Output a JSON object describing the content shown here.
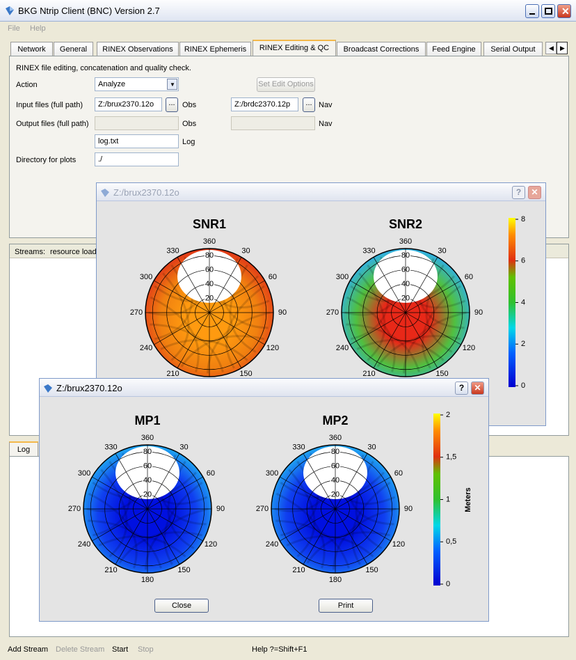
{
  "window": {
    "title": "BKG Ntrip Client (BNC) Version 2.7",
    "menu": [
      "File",
      "Help"
    ],
    "tabs": [
      "Network",
      "General",
      "RINEX Observations",
      "RINEX Ephemeris",
      "RINEX Editing & QC",
      "Broadcast Corrections",
      "Feed Engine",
      "Serial Output"
    ],
    "panel": {
      "description": "RINEX file editing, concatenation and quality check.",
      "action_label": "Action",
      "action_value": "Analyze",
      "edit_options_button": "Set Edit Options",
      "input_label": "Input files (full path)",
      "input_obs": "Z:/brux2370.12o",
      "obs_label": "Obs",
      "input_nav": "Z:/brdc2370.12p",
      "nav_label": "Nav",
      "browse": "...",
      "output_label": "Output files (full path)",
      "log_file": "log.txt",
      "log_label": "Log",
      "plots_dir_label": "Directory for plots",
      "plots_dir": "./"
    },
    "streams_label": "Streams:",
    "streams_column": "resource load",
    "log_tab": "Log",
    "toolbar": [
      "Add Stream",
      "Delete Stream",
      "Start",
      "Stop"
    ],
    "help": "Help ?=Shift+F1"
  },
  "snr_dialog": {
    "title": "Z:/brux2370.12o",
    "help": "?",
    "plots": [
      "SNR1",
      "SNR2"
    ],
    "colorbar_ticks": [
      "0",
      "2",
      "4",
      "6",
      "8"
    ]
  },
  "mp_dialog": {
    "title": "Z:/brux2370.12o",
    "help": "?",
    "plots": [
      "MP1",
      "MP2"
    ],
    "colorbar_ticks": [
      "0",
      "0,5",
      "1",
      "1,5",
      "2"
    ],
    "colorbar_label": "Meters",
    "buttons": [
      "Close",
      "Print"
    ]
  },
  "polar": {
    "angle_labels": [
      "360",
      "30",
      "60",
      "90",
      "120",
      "150",
      "180",
      "210",
      "240",
      "270",
      "300",
      "330"
    ],
    "radial_labels": [
      "80",
      "60",
      "40",
      "20"
    ]
  }
}
